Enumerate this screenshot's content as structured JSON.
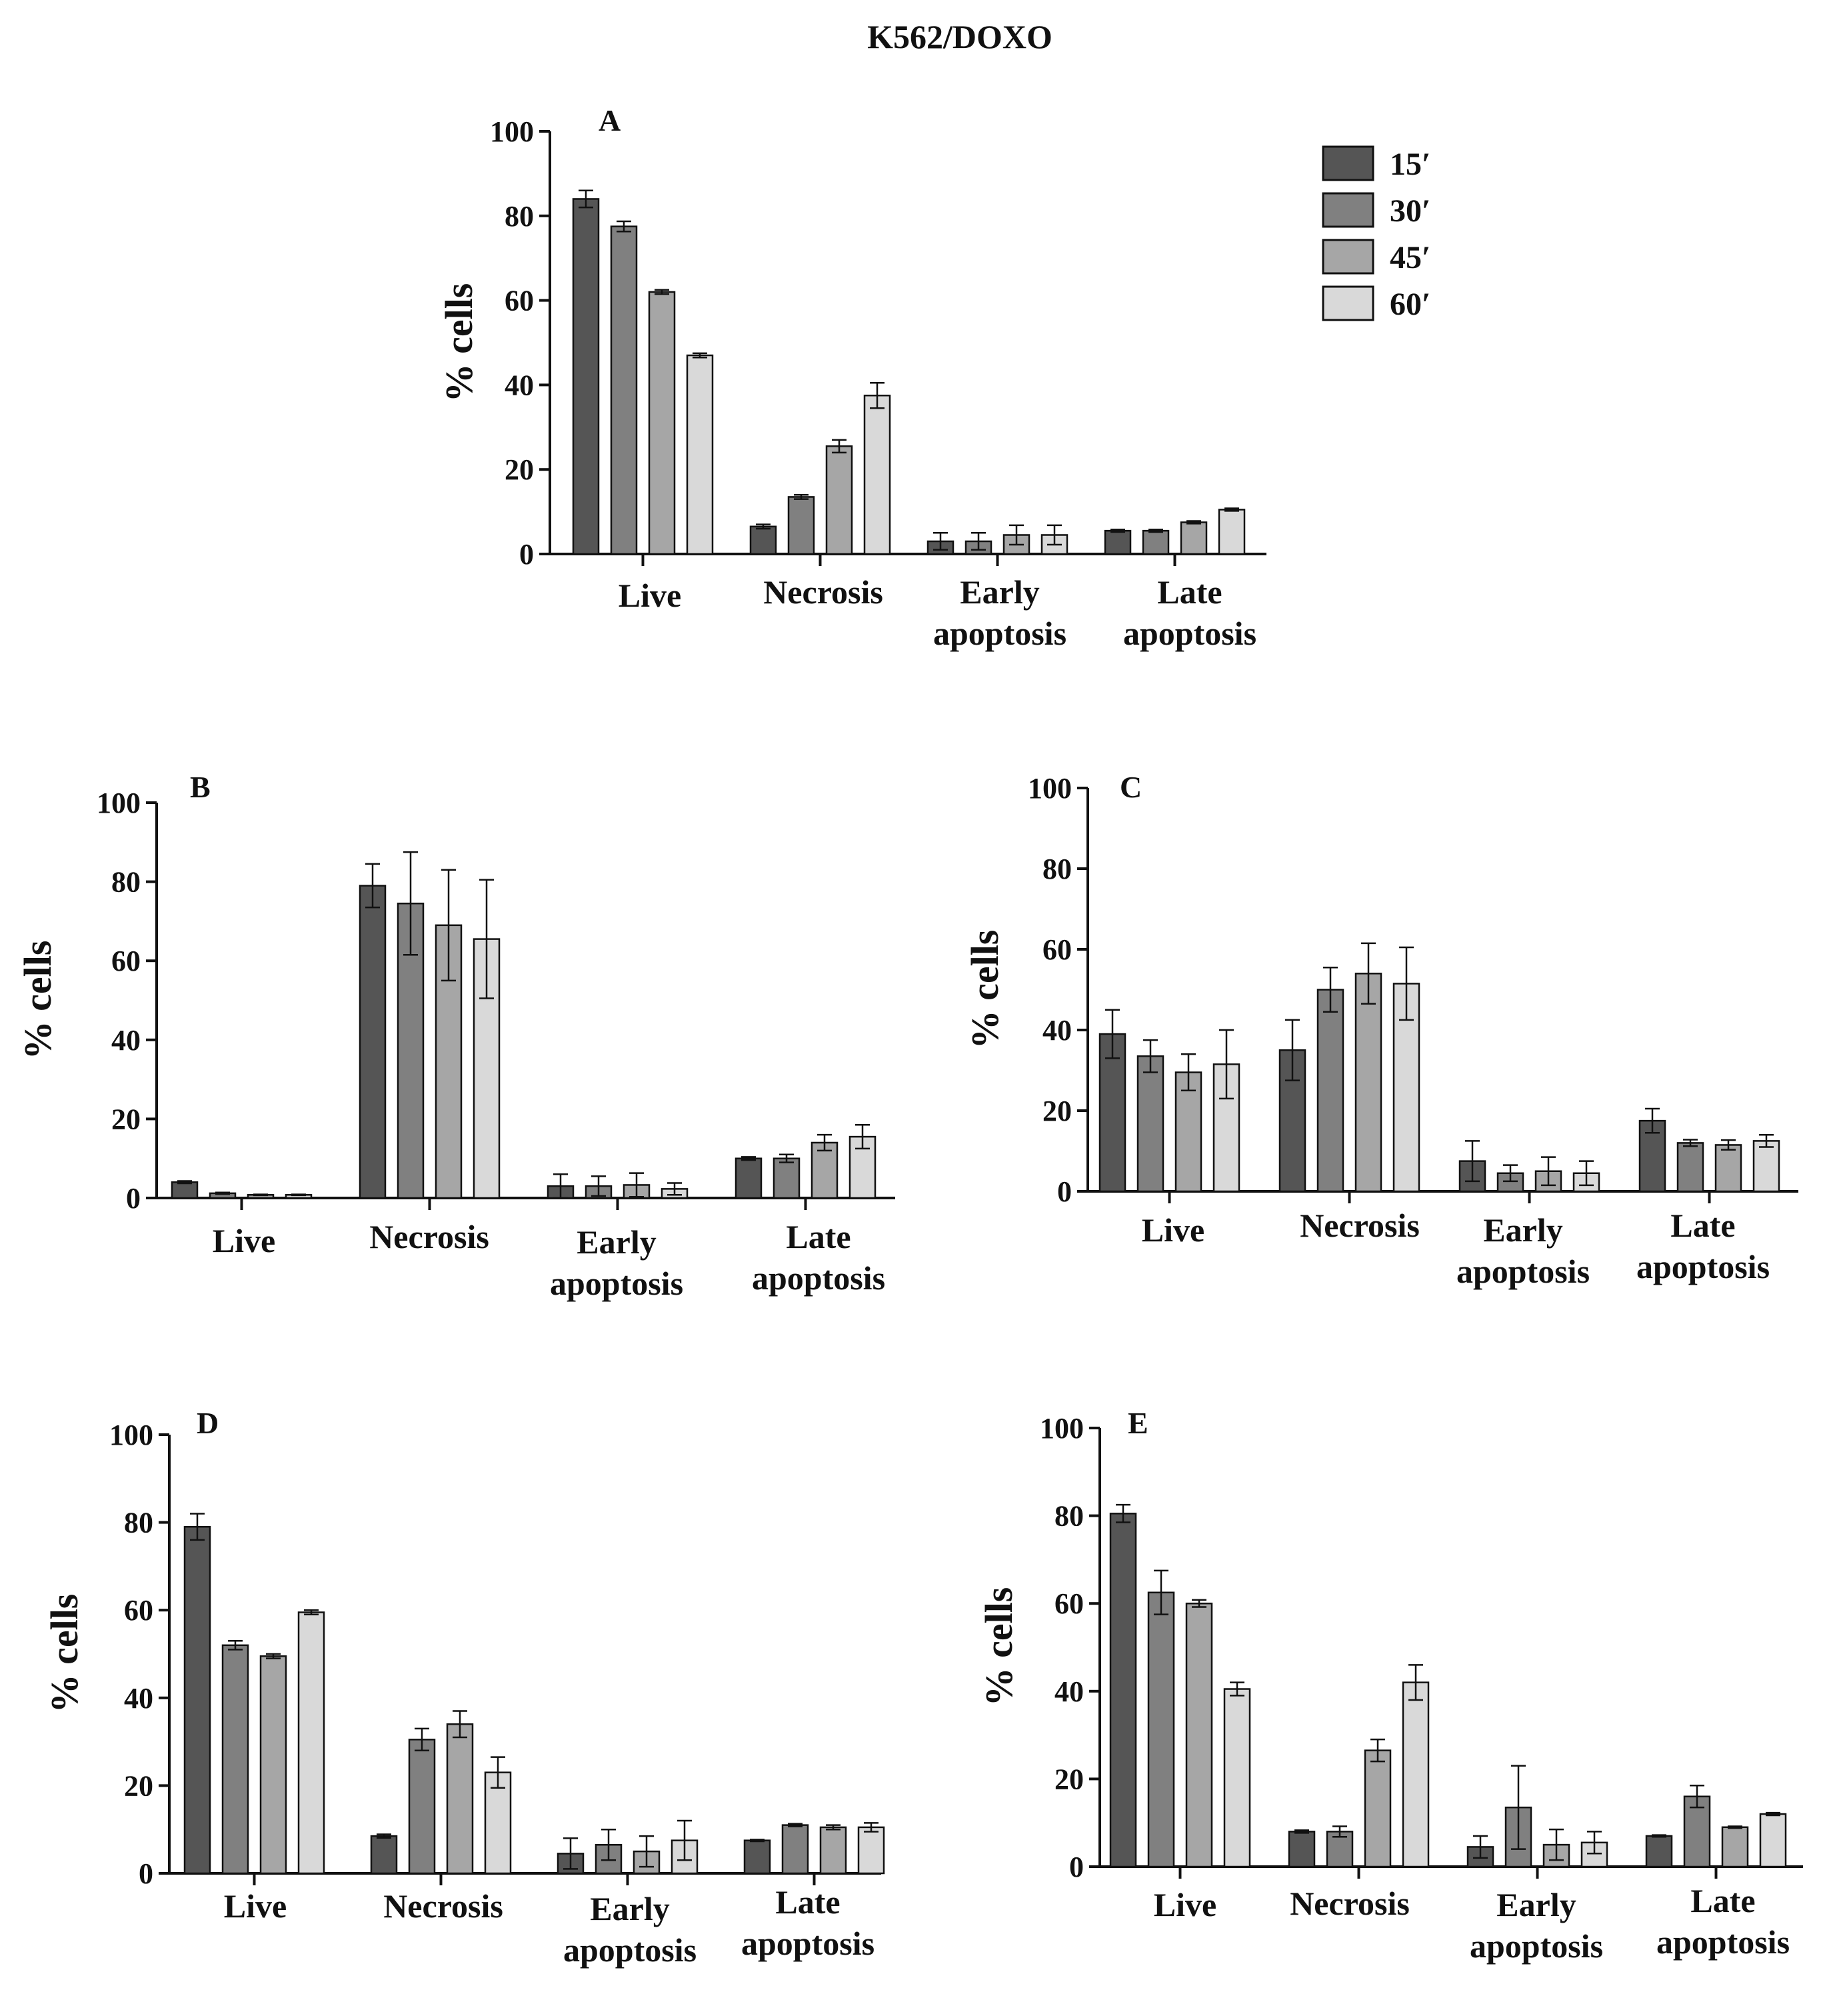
{
  "figure_title": "K562/DOXO",
  "legend": {
    "items": [
      {
        "label": "15′",
        "color": "#555555"
      },
      {
        "label": "30′",
        "color": "#808080"
      },
      {
        "label": "45′",
        "color": "#a6a6a6"
      },
      {
        "label": "60′",
        "color": "#d9d9d9"
      }
    ]
  },
  "chart_data": [
    {
      "panel": "A",
      "type": "bar",
      "ylabel": "% cells",
      "ylim": [
        0,
        100
      ],
      "yticks": [
        "0",
        "20",
        "40",
        "60",
        "80",
        "100"
      ],
      "categories": [
        [
          "Live"
        ],
        [
          "Necrosis"
        ],
        [
          "Early",
          "apoptosis"
        ],
        [
          "Late",
          "apoptosis"
        ]
      ],
      "series": [
        {
          "name": "15′",
          "values": [
            84,
            6.5,
            3,
            5.5
          ],
          "errors": [
            2,
            0.5,
            2,
            0.3
          ]
        },
        {
          "name": "30′",
          "values": [
            77.5,
            13.5,
            3,
            5.5
          ],
          "errors": [
            1.2,
            0.5,
            2,
            0.3
          ]
        },
        {
          "name": "45′",
          "values": [
            62,
            25.5,
            4.5,
            7.5
          ],
          "errors": [
            0.5,
            1.5,
            2.3,
            0.3
          ]
        },
        {
          "name": "60′",
          "values": [
            47,
            37.5,
            4.5,
            10.5
          ],
          "errors": [
            0.5,
            3,
            2.3,
            0.3
          ]
        }
      ]
    },
    {
      "panel": "B",
      "type": "bar",
      "ylabel": "% cells",
      "ylim": [
        0,
        100
      ],
      "yticks": [
        "0",
        "20",
        "40",
        "60",
        "80",
        "100"
      ],
      "categories": [
        [
          "Live"
        ],
        [
          "Necrosis"
        ],
        [
          "Early",
          "apoptosis"
        ],
        [
          "Late",
          "apoptosis"
        ]
      ],
      "series": [
        {
          "name": "15′",
          "values": [
            4,
            79,
            3,
            10
          ],
          "errors": [
            0.3,
            5.5,
            3,
            0.4
          ]
        },
        {
          "name": "30′",
          "values": [
            1.2,
            74.5,
            3,
            10
          ],
          "errors": [
            0.2,
            13,
            2.5,
            1
          ]
        },
        {
          "name": "45′",
          "values": [
            0.8,
            69,
            3.3,
            14
          ],
          "errors": [
            0.1,
            14,
            3,
            2
          ]
        },
        {
          "name": "60′",
          "values": [
            0.8,
            65.5,
            2.3,
            15.5
          ],
          "errors": [
            0.1,
            15,
            1.5,
            3
          ]
        }
      ]
    },
    {
      "panel": "C",
      "type": "bar",
      "ylabel": "% cells",
      "ylim": [
        0,
        100
      ],
      "yticks": [
        "0",
        "20",
        "40",
        "60",
        "80",
        "100"
      ],
      "categories": [
        [
          "Live"
        ],
        [
          "Necrosis"
        ],
        [
          "Early",
          "apoptosis"
        ],
        [
          "Late",
          "apoptosis"
        ]
      ],
      "series": [
        {
          "name": "15′",
          "values": [
            39,
            35,
            7.5,
            17.5
          ],
          "errors": [
            6,
            7.5,
            5,
            3
          ]
        },
        {
          "name": "30′",
          "values": [
            33.5,
            50,
            4.5,
            12
          ],
          "errors": [
            4,
            5.5,
            2,
            0.8
          ]
        },
        {
          "name": "45′",
          "values": [
            29.5,
            54,
            5,
            11.5
          ],
          "errors": [
            4.5,
            7.5,
            3.5,
            1.2
          ]
        },
        {
          "name": "60′",
          "values": [
            31.5,
            51.5,
            4.5,
            12.5
          ],
          "errors": [
            8.5,
            9,
            3,
            1.5
          ]
        }
      ]
    },
    {
      "panel": "D",
      "type": "bar",
      "ylabel": "% cells",
      "ylim": [
        0,
        100
      ],
      "yticks": [
        "0",
        "20",
        "40",
        "60",
        "80",
        "100"
      ],
      "categories": [
        [
          "Live"
        ],
        [
          "Necrosis"
        ],
        [
          "Early",
          "apoptosis"
        ],
        [
          "Late",
          "apoptosis"
        ]
      ],
      "series": [
        {
          "name": "15′",
          "values": [
            79,
            8.5,
            4.5,
            7.5
          ],
          "errors": [
            3,
            0.4,
            3.5,
            0.2
          ]
        },
        {
          "name": "30′",
          "values": [
            52,
            30.5,
            6.5,
            11
          ],
          "errors": [
            1,
            2.5,
            3.5,
            0.3
          ]
        },
        {
          "name": "45′",
          "values": [
            49.5,
            34,
            5,
            10.5
          ],
          "errors": [
            0.5,
            3,
            3.5,
            0.5
          ]
        },
        {
          "name": "60′",
          "values": [
            59.5,
            23,
            7.5,
            10.5
          ],
          "errors": [
            0.5,
            3.5,
            4.5,
            1
          ]
        }
      ]
    },
    {
      "panel": "E",
      "type": "bar",
      "ylabel": "% cells",
      "ylim": [
        0,
        100
      ],
      "yticks": [
        "0",
        "20",
        "40",
        "60",
        "80",
        "100"
      ],
      "categories": [
        [
          "Live"
        ],
        [
          "Necrosis"
        ],
        [
          "Early",
          "apoptosis"
        ],
        [
          "Late",
          "apoptosis"
        ]
      ],
      "series": [
        {
          "name": "15′",
          "values": [
            80.5,
            8,
            4.5,
            7
          ],
          "errors": [
            2,
            0.3,
            2.5,
            0.2
          ]
        },
        {
          "name": "30′",
          "values": [
            62.5,
            8,
            13.5,
            16
          ],
          "errors": [
            5,
            1.2,
            9.5,
            2.5
          ]
        },
        {
          "name": "45′",
          "values": [
            60,
            26.5,
            5,
            9
          ],
          "errors": [
            0.8,
            2.5,
            3.5,
            0.2
          ]
        },
        {
          "name": "60′",
          "values": [
            40.5,
            42,
            5.5,
            12
          ],
          "errors": [
            1.5,
            4,
            2.5,
            0.3
          ]
        }
      ]
    }
  ]
}
